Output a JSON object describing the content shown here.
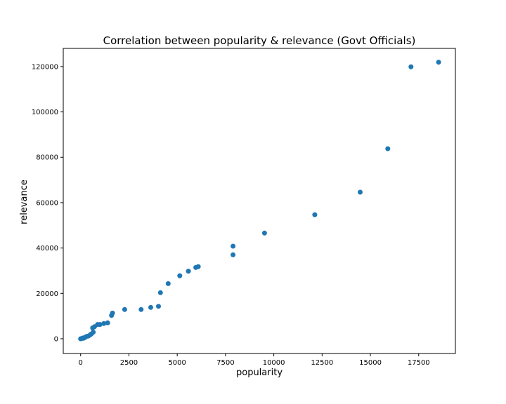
{
  "chart_data": {
    "type": "scatter",
    "title": "Correlation between popularity & relevance (Govt Officials)",
    "xlabel": "popularity",
    "ylabel": "relevance",
    "xlim": [
      -900,
      19400
    ],
    "ylim": [
      -6500,
      128000
    ],
    "xticks": [
      0,
      2500,
      5000,
      7500,
      10000,
      12500,
      15000,
      17500
    ],
    "yticks": [
      0,
      20000,
      40000,
      60000,
      80000,
      100000,
      120000
    ],
    "grid": false,
    "marker_color": "#1f77b4",
    "points": [
      {
        "x": 0,
        "y": 0
      },
      {
        "x": 50,
        "y": 100
      },
      {
        "x": 100,
        "y": 300
      },
      {
        "x": 150,
        "y": 200
      },
      {
        "x": 200,
        "y": 500
      },
      {
        "x": 250,
        "y": 700
      },
      {
        "x": 300,
        "y": 1000
      },
      {
        "x": 400,
        "y": 1200
      },
      {
        "x": 500,
        "y": 1800
      },
      {
        "x": 550,
        "y": 2100
      },
      {
        "x": 650,
        "y": 2900
      },
      {
        "x": 620,
        "y": 4800
      },
      {
        "x": 720,
        "y": 5300
      },
      {
        "x": 880,
        "y": 6300
      },
      {
        "x": 1000,
        "y": 6300
      },
      {
        "x": 1200,
        "y": 6700
      },
      {
        "x": 1400,
        "y": 7000
      },
      {
        "x": 1600,
        "y": 10300
      },
      {
        "x": 1650,
        "y": 11300
      },
      {
        "x": 2280,
        "y": 12900
      },
      {
        "x": 3130,
        "y": 12900
      },
      {
        "x": 3630,
        "y": 13800
      },
      {
        "x": 4030,
        "y": 14300
      },
      {
        "x": 4130,
        "y": 20300
      },
      {
        "x": 4530,
        "y": 24300
      },
      {
        "x": 5130,
        "y": 27800
      },
      {
        "x": 5580,
        "y": 29800
      },
      {
        "x": 5960,
        "y": 31400
      },
      {
        "x": 6090,
        "y": 31800
      },
      {
        "x": 7890,
        "y": 37000
      },
      {
        "x": 7890,
        "y": 40800
      },
      {
        "x": 9520,
        "y": 46600
      },
      {
        "x": 12120,
        "y": 54700
      },
      {
        "x": 14470,
        "y": 64600
      },
      {
        "x": 15900,
        "y": 83800
      },
      {
        "x": 17100,
        "y": 119900
      },
      {
        "x": 18530,
        "y": 121900
      }
    ]
  }
}
